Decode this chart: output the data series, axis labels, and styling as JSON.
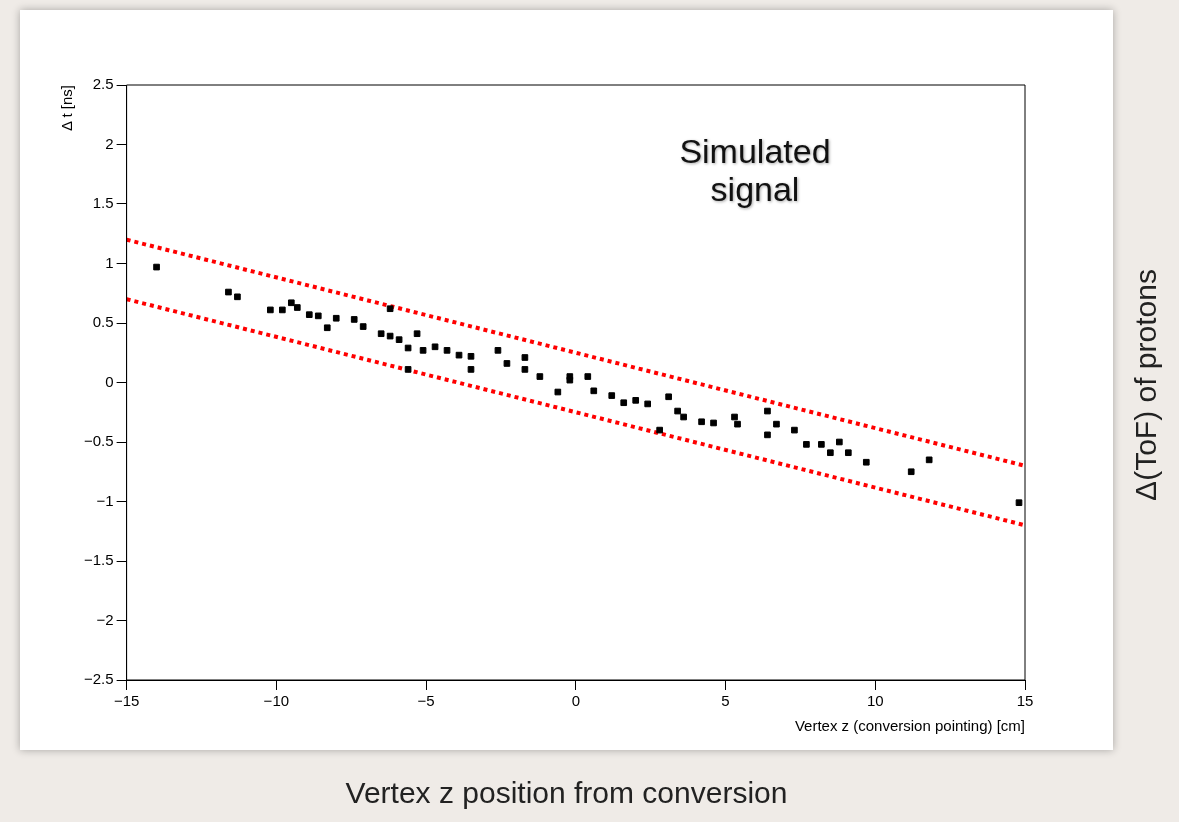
{
  "chart_data": {
    "type": "scatter",
    "xlabel": "Vertex z (conversion pointing) [cm]",
    "ylabel": "Δ t [ns]",
    "annotations": [
      "Simulated signal",
      "Δ(ToF) of protons",
      "Vertex z position from conversion"
    ],
    "xlim": [
      -15,
      15
    ],
    "xticks": [
      {
        "value": -15,
        "label": "−15"
      },
      {
        "value": -10,
        "label": "−10"
      },
      {
        "value": -5,
        "label": "−5"
      },
      0,
      5,
      10,
      15
    ],
    "ylim": [
      -2.5,
      2.5
    ],
    "yticks": [
      {
        "value": -2.5,
        "label": "−2.5"
      },
      {
        "value": -2,
        "label": "−2"
      },
      {
        "value": -1.5,
        "label": "−1.5"
      },
      {
        "value": -1,
        "label": "−1"
      },
      {
        "value": -0.5,
        "label": "−0.5"
      },
      0,
      0.5,
      1,
      1.5,
      2,
      2.5
    ],
    "grid": false,
    "legend": false,
    "marker": "square",
    "series": [
      {
        "type": "scatter",
        "color": "#000000",
        "x": [
          -14.0,
          -11.6,
          -11.3,
          -10.2,
          -9.8,
          -9.5,
          -9.3,
          -8.9,
          -8.6,
          -8.3,
          -8.0,
          -7.4,
          -7.1,
          -6.5,
          -6.2,
          -6.2,
          -5.9,
          -5.6,
          -5.3,
          -5.6,
          -5.1,
          -4.7,
          -4.3,
          -3.9,
          -3.5,
          -3.5,
          -2.6,
          -2.3,
          -1.7,
          -1.7,
          -1.2,
          -0.6,
          -0.2,
          -0.2,
          0.4,
          0.6,
          1.2,
          1.6,
          2.0,
          2.4,
          2.8,
          3.1,
          3.4,
          3.6,
          4.2,
          4.6,
          5.3,
          5.4,
          6.4,
          6.7,
          6.4,
          7.3,
          7.7,
          8.2,
          8.5,
          8.8,
          9.1,
          9.7,
          11.2,
          11.8,
          14.8
        ],
        "values": [
          0.97,
          0.76,
          0.72,
          0.61,
          0.61,
          0.67,
          0.63,
          0.57,
          0.56,
          0.46,
          0.54,
          0.53,
          0.47,
          0.41,
          0.62,
          0.39,
          0.36,
          0.29,
          0.41,
          0.11,
          0.27,
          0.3,
          0.27,
          0.23,
          0.11,
          0.22,
          0.27,
          0.16,
          0.21,
          0.11,
          0.05,
          -0.08,
          0.05,
          0.02,
          0.05,
          -0.07,
          -0.11,
          -0.17,
          -0.15,
          -0.18,
          -0.4,
          -0.12,
          -0.24,
          -0.29,
          -0.33,
          -0.34,
          -0.29,
          -0.35,
          -0.24,
          -0.35,
          -0.44,
          -0.4,
          -0.52,
          -0.52,
          -0.59,
          -0.5,
          -0.59,
          -0.67,
          -0.75,
          -0.65,
          -1.01
        ]
      },
      {
        "type": "line",
        "color": "#ff0000",
        "line_style": "dotted",
        "marker": "none",
        "x": [
          -15,
          15
        ],
        "values": [
          1.2,
          -0.7
        ]
      },
      {
        "type": "line",
        "color": "#ff0000",
        "line_style": "dotted",
        "marker": "none",
        "x": [
          -15,
          15
        ],
        "values": [
          0.7,
          -1.2
        ]
      }
    ]
  }
}
